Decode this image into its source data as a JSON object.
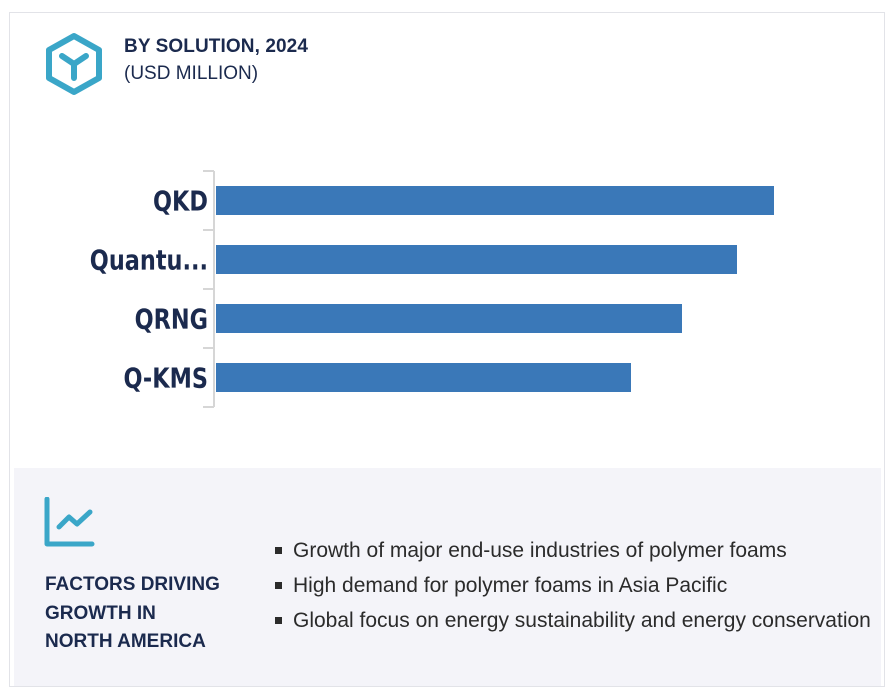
{
  "header": {
    "icon": "hexagon-cube-icon",
    "title": "BY SOLUTION, 2024",
    "subtitle": "(USD MILLION)"
  },
  "chart_data": {
    "type": "bar",
    "orientation": "horizontal",
    "title": "BY SOLUTION, 2024",
    "subtitle": "(USD MILLION)",
    "xlabel": "",
    "ylabel": "",
    "categories": [
      "QKD",
      "Quantu...",
      "QRNG",
      "Q-KMS"
    ],
    "values": [
      558,
      521,
      466,
      415
    ],
    "value_note": "No value axis or data labels shown; values are relative estimates from bar lengths",
    "xlim": [
      0,
      600
    ],
    "grid": false,
    "legend": "none",
    "bar_color": "#3a78b8"
  },
  "factors": {
    "icon": "trend-line-chart-icon",
    "title_lines": [
      "FACTORS DRIVING",
      "GROWTH IN",
      "NORTH AMERICA"
    ],
    "bullets": [
      "Growth of major end-use industries of polymer foams",
      "High demand for polymer foams in Asia Pacific",
      "Global focus on energy sustainability and energy conservation"
    ]
  },
  "colors": {
    "accent_icon": "#3aa6c8",
    "bar": "#3a78b8",
    "heading": "#1b2a4e",
    "panel_bg": "#f4f4f9"
  }
}
